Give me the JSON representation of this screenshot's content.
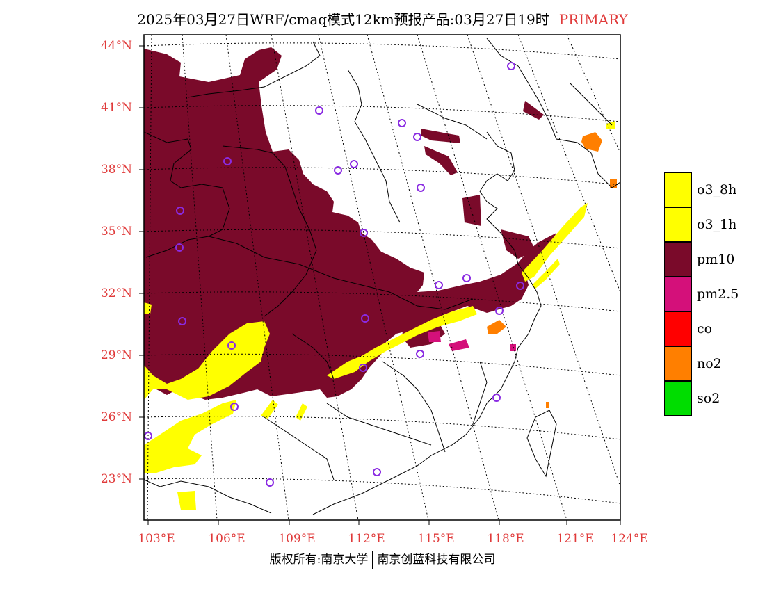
{
  "title": {
    "main": "2025年03月27日WRF/cmaq模式12km预报产品:03月27日19时",
    "tag": "PRIMARY"
  },
  "axes": {
    "lat_labels": [
      "44°N",
      "41°N",
      "38°N",
      "35°N",
      "32°N",
      "29°N",
      "26°N",
      "23°N"
    ],
    "lon_labels": [
      "103°E",
      "106°E",
      "109°E",
      "112°E",
      "115°E",
      "118°E",
      "121°E",
      "124°E"
    ]
  },
  "legend": {
    "items": [
      {
        "label": "o3_8h",
        "color": "#ffff00"
      },
      {
        "label": "o3_1h",
        "color": "#ffff00"
      },
      {
        "label": "pm10",
        "color": "#7a0a2a"
      },
      {
        "label": "pm2.5",
        "color": "#d4107a"
      },
      {
        "label": "co",
        "color": "#ff0000"
      },
      {
        "label": "no2",
        "color": "#ff7f00"
      },
      {
        "label": "so2",
        "color": "#00dd00"
      }
    ]
  },
  "colors": {
    "pm10": "#7a0a2a",
    "o3": "#ffff00",
    "pm25": "#d4107a",
    "no2": "#ff7f00",
    "station": "#8a2be2",
    "axis_label": "#e03a3a"
  },
  "copyright": {
    "left": "版权所有:南京大学",
    "right": "南京创蓝科技有限公司"
  }
}
